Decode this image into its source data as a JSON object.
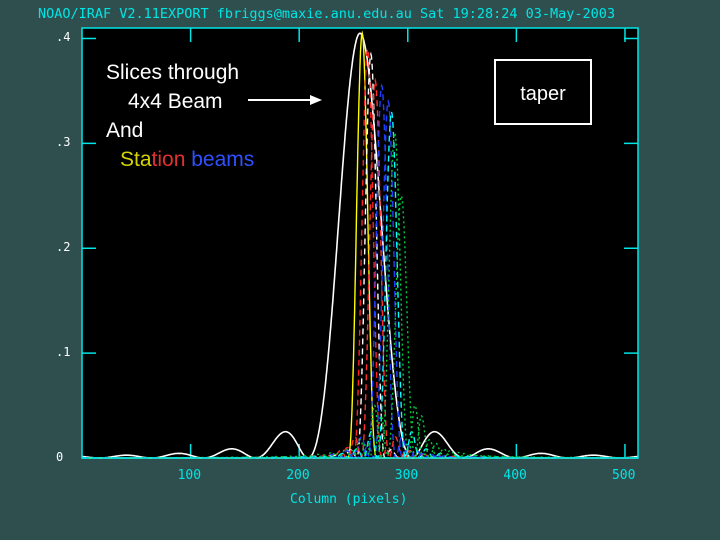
{
  "header": {
    "text": "NOAO/IRAF V2.11EXPORT fbriggs@maxie.anu.edu.au Sat 19:28:24 03-May-2003"
  },
  "annotation": {
    "line1": "Slices through",
    "line2": "4x4 Beam",
    "line3": "And",
    "line4_parts": [
      {
        "text": "Sta",
        "color": "#d4d400"
      },
      {
        "text": "tion ",
        "color": "#e03030"
      },
      {
        "text": "beams",
        "color": "#3050ff"
      }
    ]
  },
  "taper_label": "taper",
  "chart_data": {
    "type": "line",
    "title": "",
    "xlabel": "Column (pixels)",
    "ylabel": "",
    "xlim": [
      0,
      512
    ],
    "ylim": [
      0,
      0.41
    ],
    "x_ticks": [
      100,
      200,
      300,
      400,
      500
    ],
    "y_ticks": [
      0,
      0.1,
      0.2,
      0.3,
      0.4
    ],
    "x_tick_labels": [
      "100",
      "200",
      "300",
      "400",
      "500"
    ],
    "y_tick_labels": [
      "0",
      ".1",
      ".2",
      ".3",
      ".4"
    ],
    "background": "#000000",
    "axis_color": "#00e5e5",
    "series": [
      {
        "color": "#ffffff",
        "style": "solid",
        "center": 256,
        "peak": 0.405,
        "width": 48,
        "sidelobe": 0.025
      },
      {
        "color": "#ffff00",
        "style": "solid",
        "center": 258,
        "peak": 0.405,
        "width": 13,
        "sidelobe": 0
      },
      {
        "color": "#ff2020",
        "style": "dashed",
        "center": 263,
        "peak": 0.39,
        "width": 13,
        "sidelobe": 0.01
      },
      {
        "color": "#ffffff",
        "style": "dashed",
        "center": 266,
        "peak": 0.385,
        "width": 13,
        "sidelobe": 0.008
      },
      {
        "color": "#ff3030",
        "style": "dashed",
        "center": 270,
        "peak": 0.36,
        "width": 13,
        "sidelobe": 0.02
      },
      {
        "color": "#2040ff",
        "style": "dashed",
        "center": 276,
        "peak": 0.355,
        "width": 13,
        "sidelobe": 0.02
      },
      {
        "color": "#2040ff",
        "style": "dashed",
        "center": 282,
        "peak": 0.34,
        "width": 13,
        "sidelobe": 0.012
      },
      {
        "color": "#00ffff",
        "style": "dashed",
        "center": 285,
        "peak": 0.33,
        "width": 13,
        "sidelobe": 0.025
      },
      {
        "color": "#00cc40",
        "style": "dotted",
        "center": 288,
        "peak": 0.31,
        "width": 13,
        "sidelobe": 0.05
      },
      {
        "color": "#00cc40",
        "style": "dotted",
        "center": 294,
        "peak": 0.25,
        "width": 13,
        "sidelobe": 0.04
      }
    ]
  }
}
